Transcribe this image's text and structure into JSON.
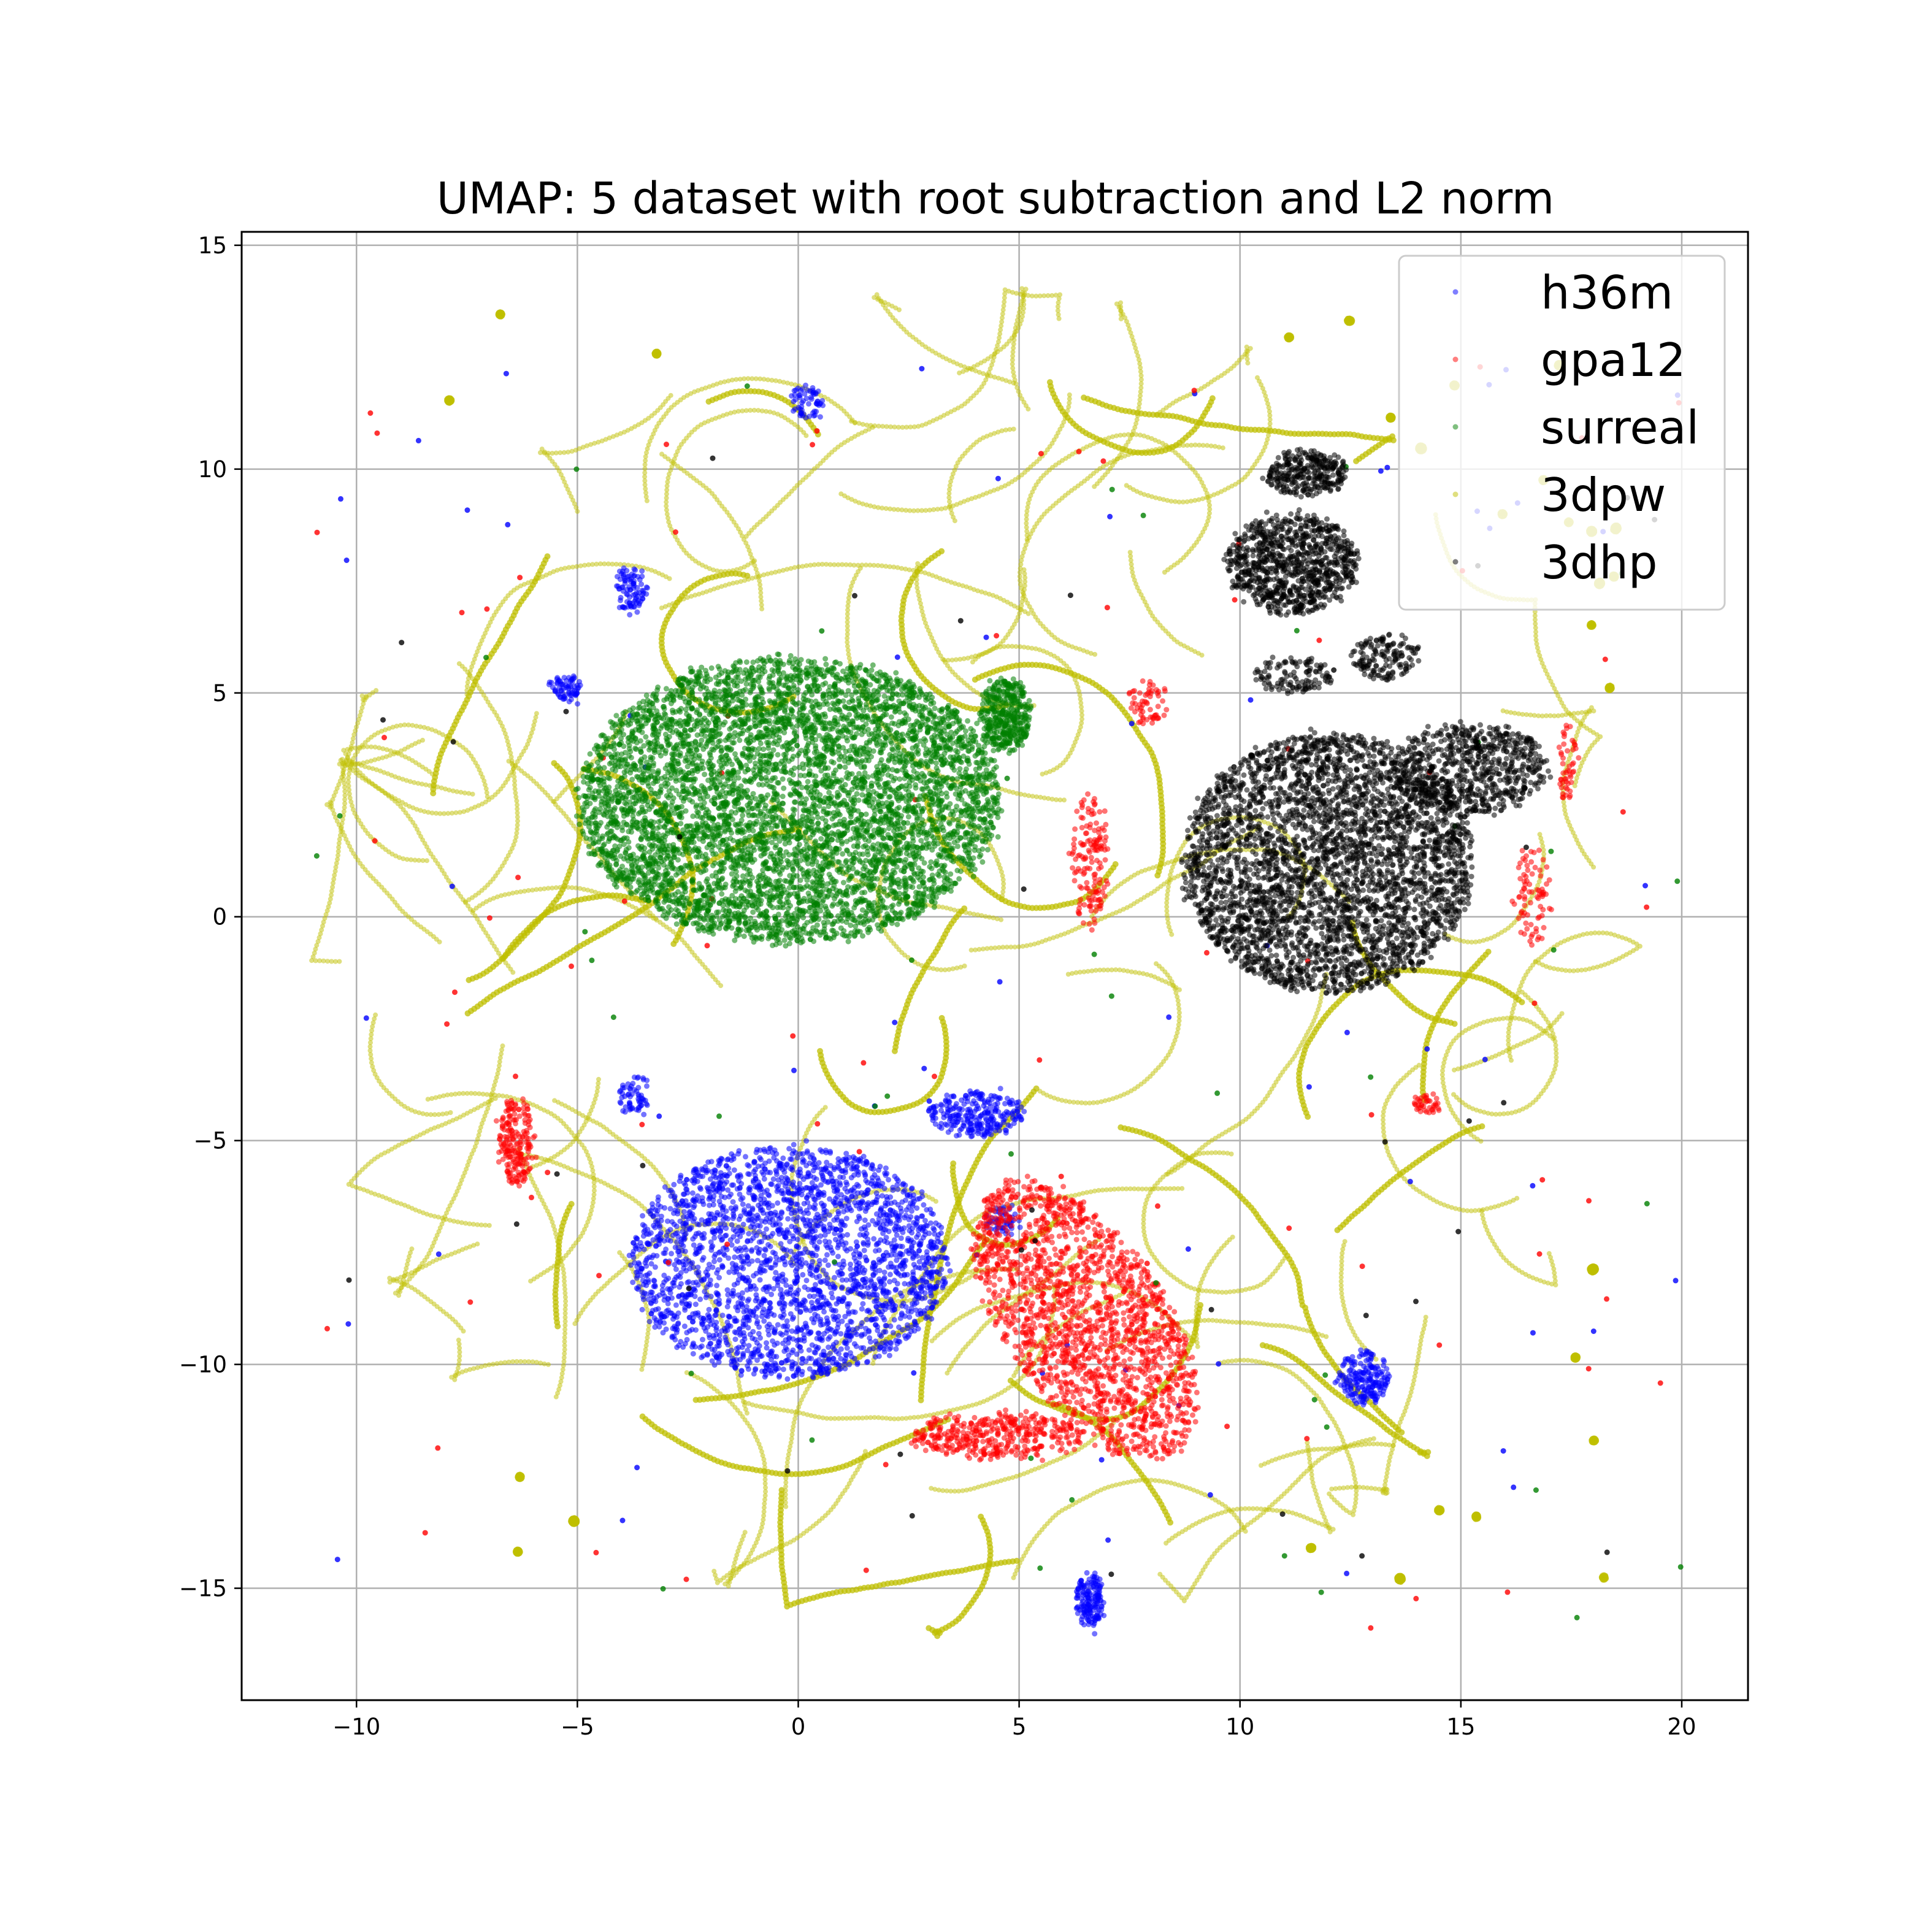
{
  "chart_data": {
    "type": "scatter",
    "title": "UMAP: 5 dataset with root subtraction and L2 norm",
    "xlabel": "",
    "ylabel": "",
    "xlim": [
      -12.6,
      21.5
    ],
    "ylim": [
      -17.5,
      15.3
    ],
    "xticks": [
      -10,
      -5,
      0,
      5,
      10,
      15,
      20
    ],
    "xtick_labels": [
      "−10",
      "−5",
      "0",
      "5",
      "10",
      "15",
      "20"
    ],
    "yticks": [
      15,
      10,
      5,
      0,
      -5,
      -10,
      -15
    ],
    "ytick_labels": [
      "15",
      "10",
      "5",
      "0",
      "−5",
      "−10",
      "−15"
    ],
    "grid": true,
    "legend_position": "top-right",
    "series": [
      {
        "name": "h36m",
        "color": "#0000ff",
        "clusters": [
          {
            "cx": -0.2,
            "cy": -7.7,
            "rx": 3.6,
            "ry": 2.6,
            "n": 2600
          },
          {
            "cx": 4.0,
            "cy": -4.4,
            "rx": 1.1,
            "ry": 0.5,
            "n": 260
          },
          {
            "cx": 6.6,
            "cy": -15.3,
            "rx": 0.3,
            "ry": 0.6,
            "n": 160
          },
          {
            "cx": 12.8,
            "cy": -10.3,
            "rx": 0.6,
            "ry": 0.6,
            "n": 200
          },
          {
            "cx": -3.8,
            "cy": 7.3,
            "rx": 0.35,
            "ry": 0.5,
            "n": 90
          },
          {
            "cx": -5.3,
            "cy": 5.1,
            "rx": 0.4,
            "ry": 0.25,
            "n": 70
          },
          {
            "cx": -3.7,
            "cy": -4.0,
            "rx": 0.35,
            "ry": 0.5,
            "n": 60
          },
          {
            "cx": 0.2,
            "cy": 11.5,
            "rx": 0.35,
            "ry": 0.4,
            "n": 60
          },
          {
            "cx": 4.6,
            "cy": -6.8,
            "rx": 0.4,
            "ry": 0.3,
            "n": 60
          }
        ],
        "scatter_count": 70
      },
      {
        "name": "gpa12",
        "color": "#ff0000",
        "clusters": [
          {
            "cx": 6.5,
            "cy": -9.0,
            "rx": 1.8,
            "ry": 3.6,
            "angle": 35,
            "n": 1800
          },
          {
            "cx": 4.5,
            "cy": -11.6,
            "rx": 2.0,
            "ry": 0.5,
            "n": 400
          },
          {
            "cx": -6.4,
            "cy": -5.0,
            "rx": 0.4,
            "ry": 1.0,
            "n": 200
          },
          {
            "cx": 6.6,
            "cy": 1.2,
            "rx": 0.4,
            "ry": 1.5,
            "n": 150
          },
          {
            "cx": 7.9,
            "cy": 4.8,
            "rx": 0.4,
            "ry": 0.5,
            "n": 60
          },
          {
            "cx": 16.6,
            "cy": 0.5,
            "rx": 0.4,
            "ry": 1.2,
            "n": 80
          },
          {
            "cx": 17.4,
            "cy": 3.5,
            "rx": 0.2,
            "ry": 0.8,
            "n": 50
          },
          {
            "cx": 14.2,
            "cy": -4.2,
            "rx": 0.3,
            "ry": 0.2,
            "n": 40
          }
        ],
        "scatter_count": 90
      },
      {
        "name": "surreal",
        "color": "#008000",
        "clusters": [
          {
            "cx": -0.2,
            "cy": 2.6,
            "rx": 4.8,
            "ry": 3.2,
            "n": 6000
          },
          {
            "cx": 4.7,
            "cy": 4.5,
            "rx": 0.55,
            "ry": 0.8,
            "n": 400
          }
        ],
        "scatter_count": 50
      },
      {
        "name": "3dpw",
        "color": "#bfbf00",
        "clusters": [],
        "scatter_count": 0,
        "trajectory_count": 140
      },
      {
        "name": "3dhp",
        "color": "#000000",
        "clusters": [
          {
            "cx": 12.0,
            "cy": 1.2,
            "rx": 3.3,
            "ry": 2.9,
            "n": 3600
          },
          {
            "cx": 15.2,
            "cy": 3.3,
            "rx": 1.8,
            "ry": 1.0,
            "n": 700
          },
          {
            "cx": 11.2,
            "cy": 7.9,
            "rx": 1.5,
            "ry": 1.1,
            "n": 900
          },
          {
            "cx": 11.5,
            "cy": 9.9,
            "rx": 0.9,
            "ry": 0.5,
            "n": 300
          },
          {
            "cx": 13.3,
            "cy": 5.8,
            "rx": 0.8,
            "ry": 0.5,
            "n": 150
          },
          {
            "cx": 11.2,
            "cy": 5.4,
            "rx": 0.9,
            "ry": 0.4,
            "n": 120
          }
        ],
        "scatter_count": 40
      }
    ]
  }
}
